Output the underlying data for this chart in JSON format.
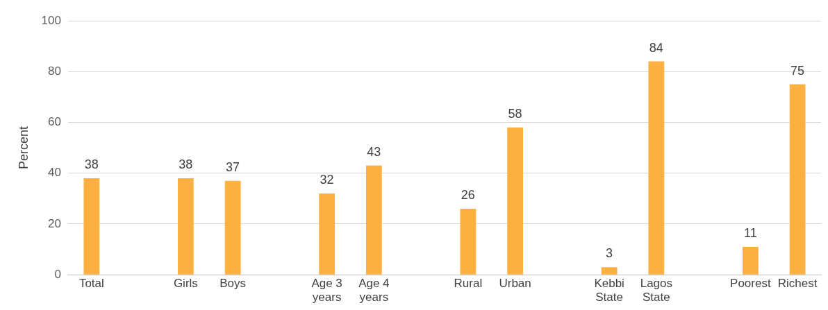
{
  "chart_data": {
    "type": "bar",
    "ylabel": "Percent",
    "categories": [
      "Total",
      null,
      "Girls",
      "Boys",
      null,
      "Age 3 years",
      "Age 4 years",
      null,
      "Rural",
      "Urban",
      null,
      "Kebbi State",
      "Lagos State",
      null,
      "Poorest",
      "Richest"
    ],
    "values": [
      38,
      null,
      38,
      37,
      null,
      32,
      43,
      null,
      26,
      58,
      null,
      3,
      84,
      null,
      11,
      75
    ],
    "color": "#fbb040",
    "ylim": [
      0,
      100
    ],
    "yticks": [
      0,
      20,
      40,
      60,
      80,
      100
    ],
    "grid": "y",
    "data_labels": true,
    "legend": false
  }
}
